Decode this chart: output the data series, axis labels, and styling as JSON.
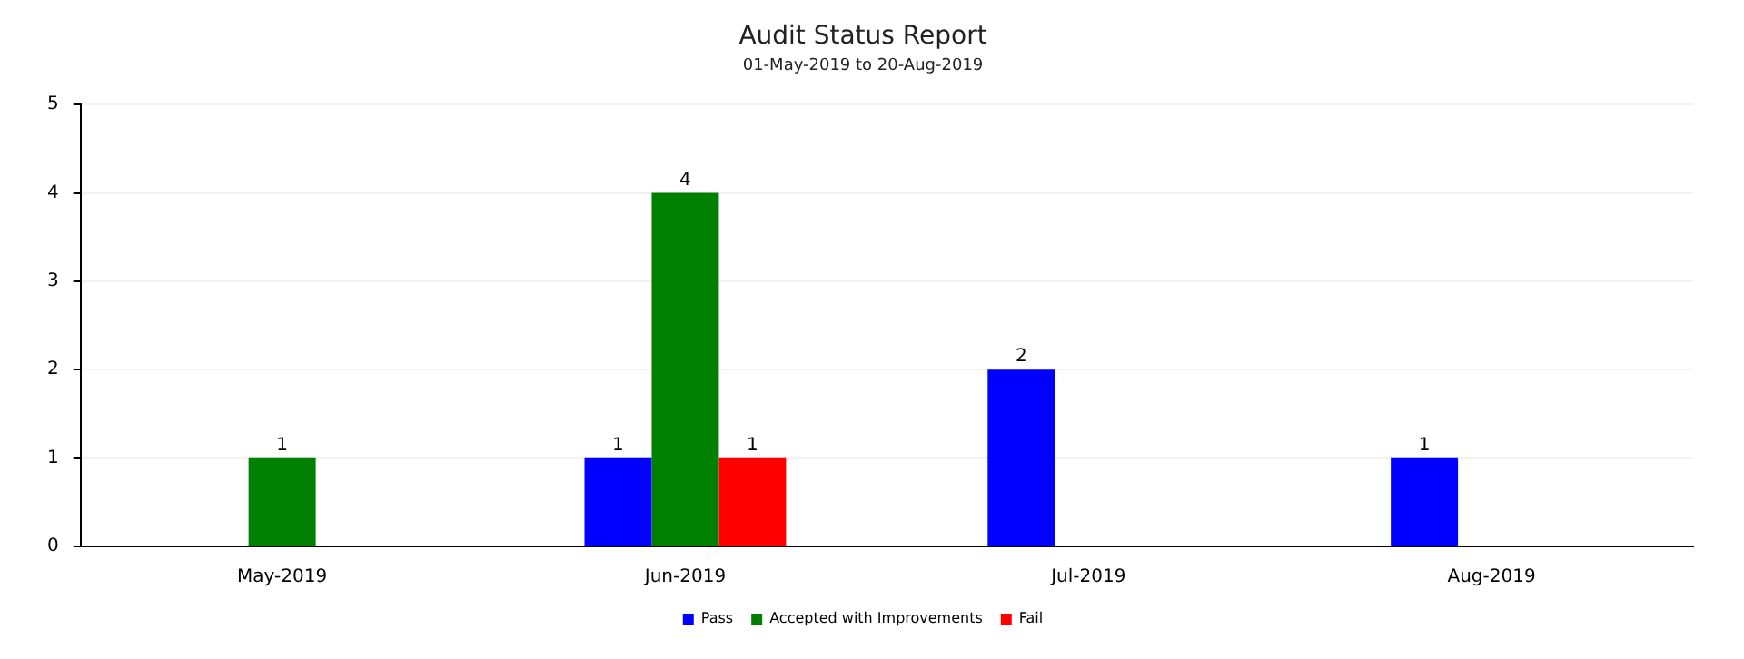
{
  "chart_data": {
    "type": "bar",
    "title": "Audit Status Report",
    "subtitle": "01-May-2019 to 20-Aug-2019",
    "categories": [
      "May-2019",
      "Jun-2019",
      "Jul-2019",
      "Aug-2019"
    ],
    "series": [
      {
        "name": "Pass",
        "color": "#0000ff",
        "values": [
          0,
          1,
          2,
          1
        ],
        "value_labels": [
          null,
          "1",
          "2",
          "1"
        ]
      },
      {
        "name": "Accepted with Improvements",
        "color": "#008000",
        "values": [
          1,
          4,
          0,
          0
        ],
        "value_labels": [
          "1",
          "4",
          null,
          null
        ]
      },
      {
        "name": "Fail",
        "color": "#ff0000",
        "values": [
          0,
          1,
          0,
          0
        ],
        "value_labels": [
          null,
          "1",
          null,
          null
        ]
      }
    ],
    "ylim": [
      0,
      5
    ],
    "yticks": [
      0,
      1,
      2,
      3,
      4,
      5
    ],
    "grid": "y",
    "legend": "bottom"
  }
}
